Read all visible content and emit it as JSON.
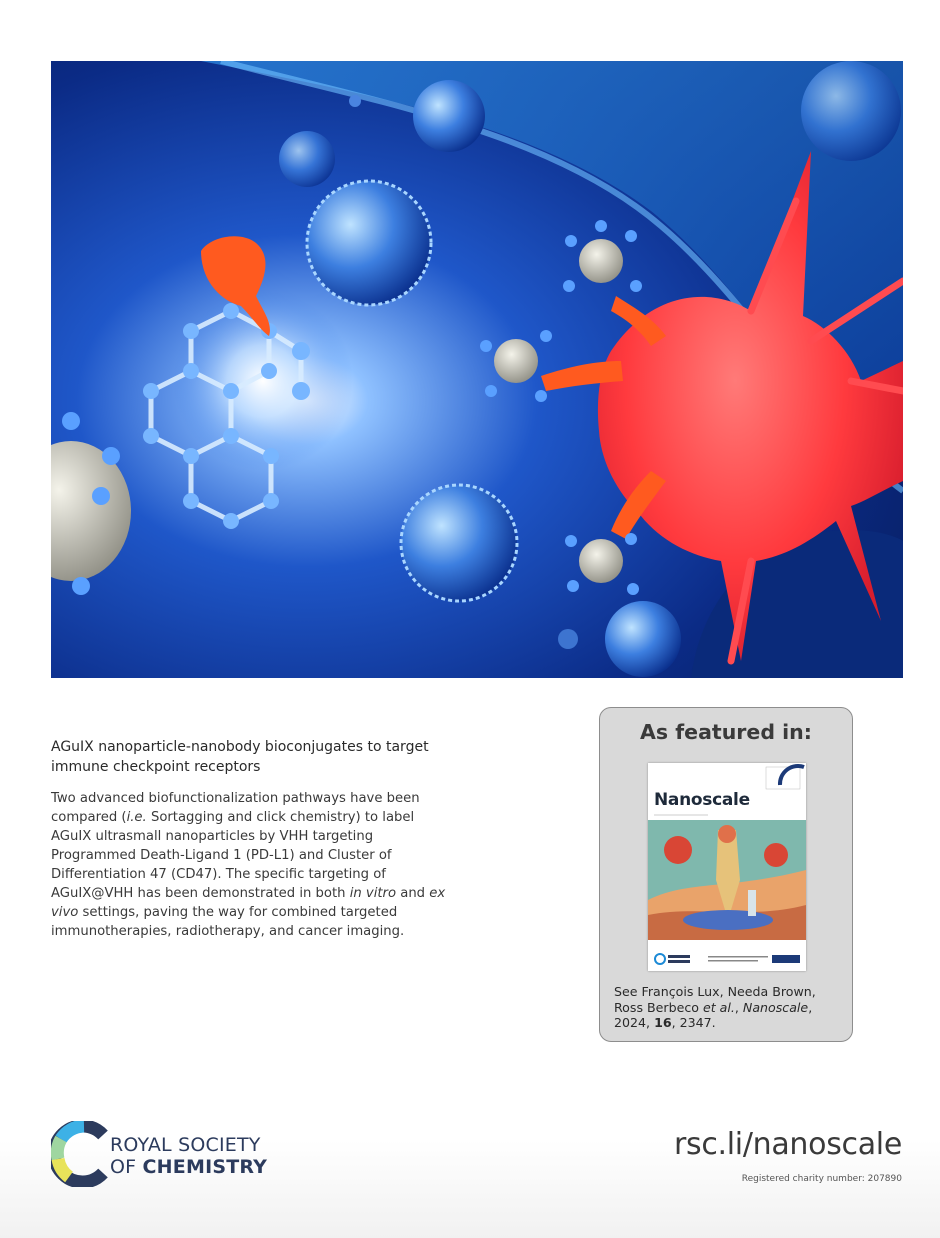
{
  "hero": {
    "alt": "Illustration of AGuIX nanoparticles conjugated to nanobodies binding a red cancer cell"
  },
  "article": {
    "title": "AGuIX nanoparticle-nanobody bioconjugates to target immune checkpoint receptors",
    "desc_p1": "Two advanced biofunctionalization pathways have been compared (",
    "desc_ie": "i.e.",
    "desc_p2": " Sortagging and click chemistry) to label AGuIX ultrasmall nanoparticles by VHH targeting Programmed Death-Ligand 1 (PD-L1) and Cluster of Differentiation 47 (CD47). The specific targeting of AGuIX@VHH has been demonstrated in both ",
    "desc_invitro": "in vitro",
    "desc_and": " and ",
    "desc_exvivo": "ex vivo",
    "desc_p3": " settings, paving the way for combined targeted immunotherapies, radiotherapy, and cancer imaging."
  },
  "featured": {
    "heading": "As featured in:",
    "journal": "Nanoscale",
    "cite_pre": "See François Lux, Needa Brown, Ross Berbeco ",
    "cite_etal": "et al.",
    "cite_comma": ", ",
    "cite_journal": "Nanoscale",
    "cite_year": ", 2024, ",
    "cite_vol": "16",
    "cite_pages": ", 2347."
  },
  "footer": {
    "rsc_line1": "ROYAL SOCIETY",
    "rsc_of": "OF ",
    "rsc_chem": "CHEMISTRY",
    "url": "rsc.li/nanoscale",
    "charity": "Registered charity number: 207890"
  },
  "colors": {
    "cell": "#ff3b3b",
    "background": "#0d2f8a",
    "rsc_navy": "#2c3b5d"
  }
}
